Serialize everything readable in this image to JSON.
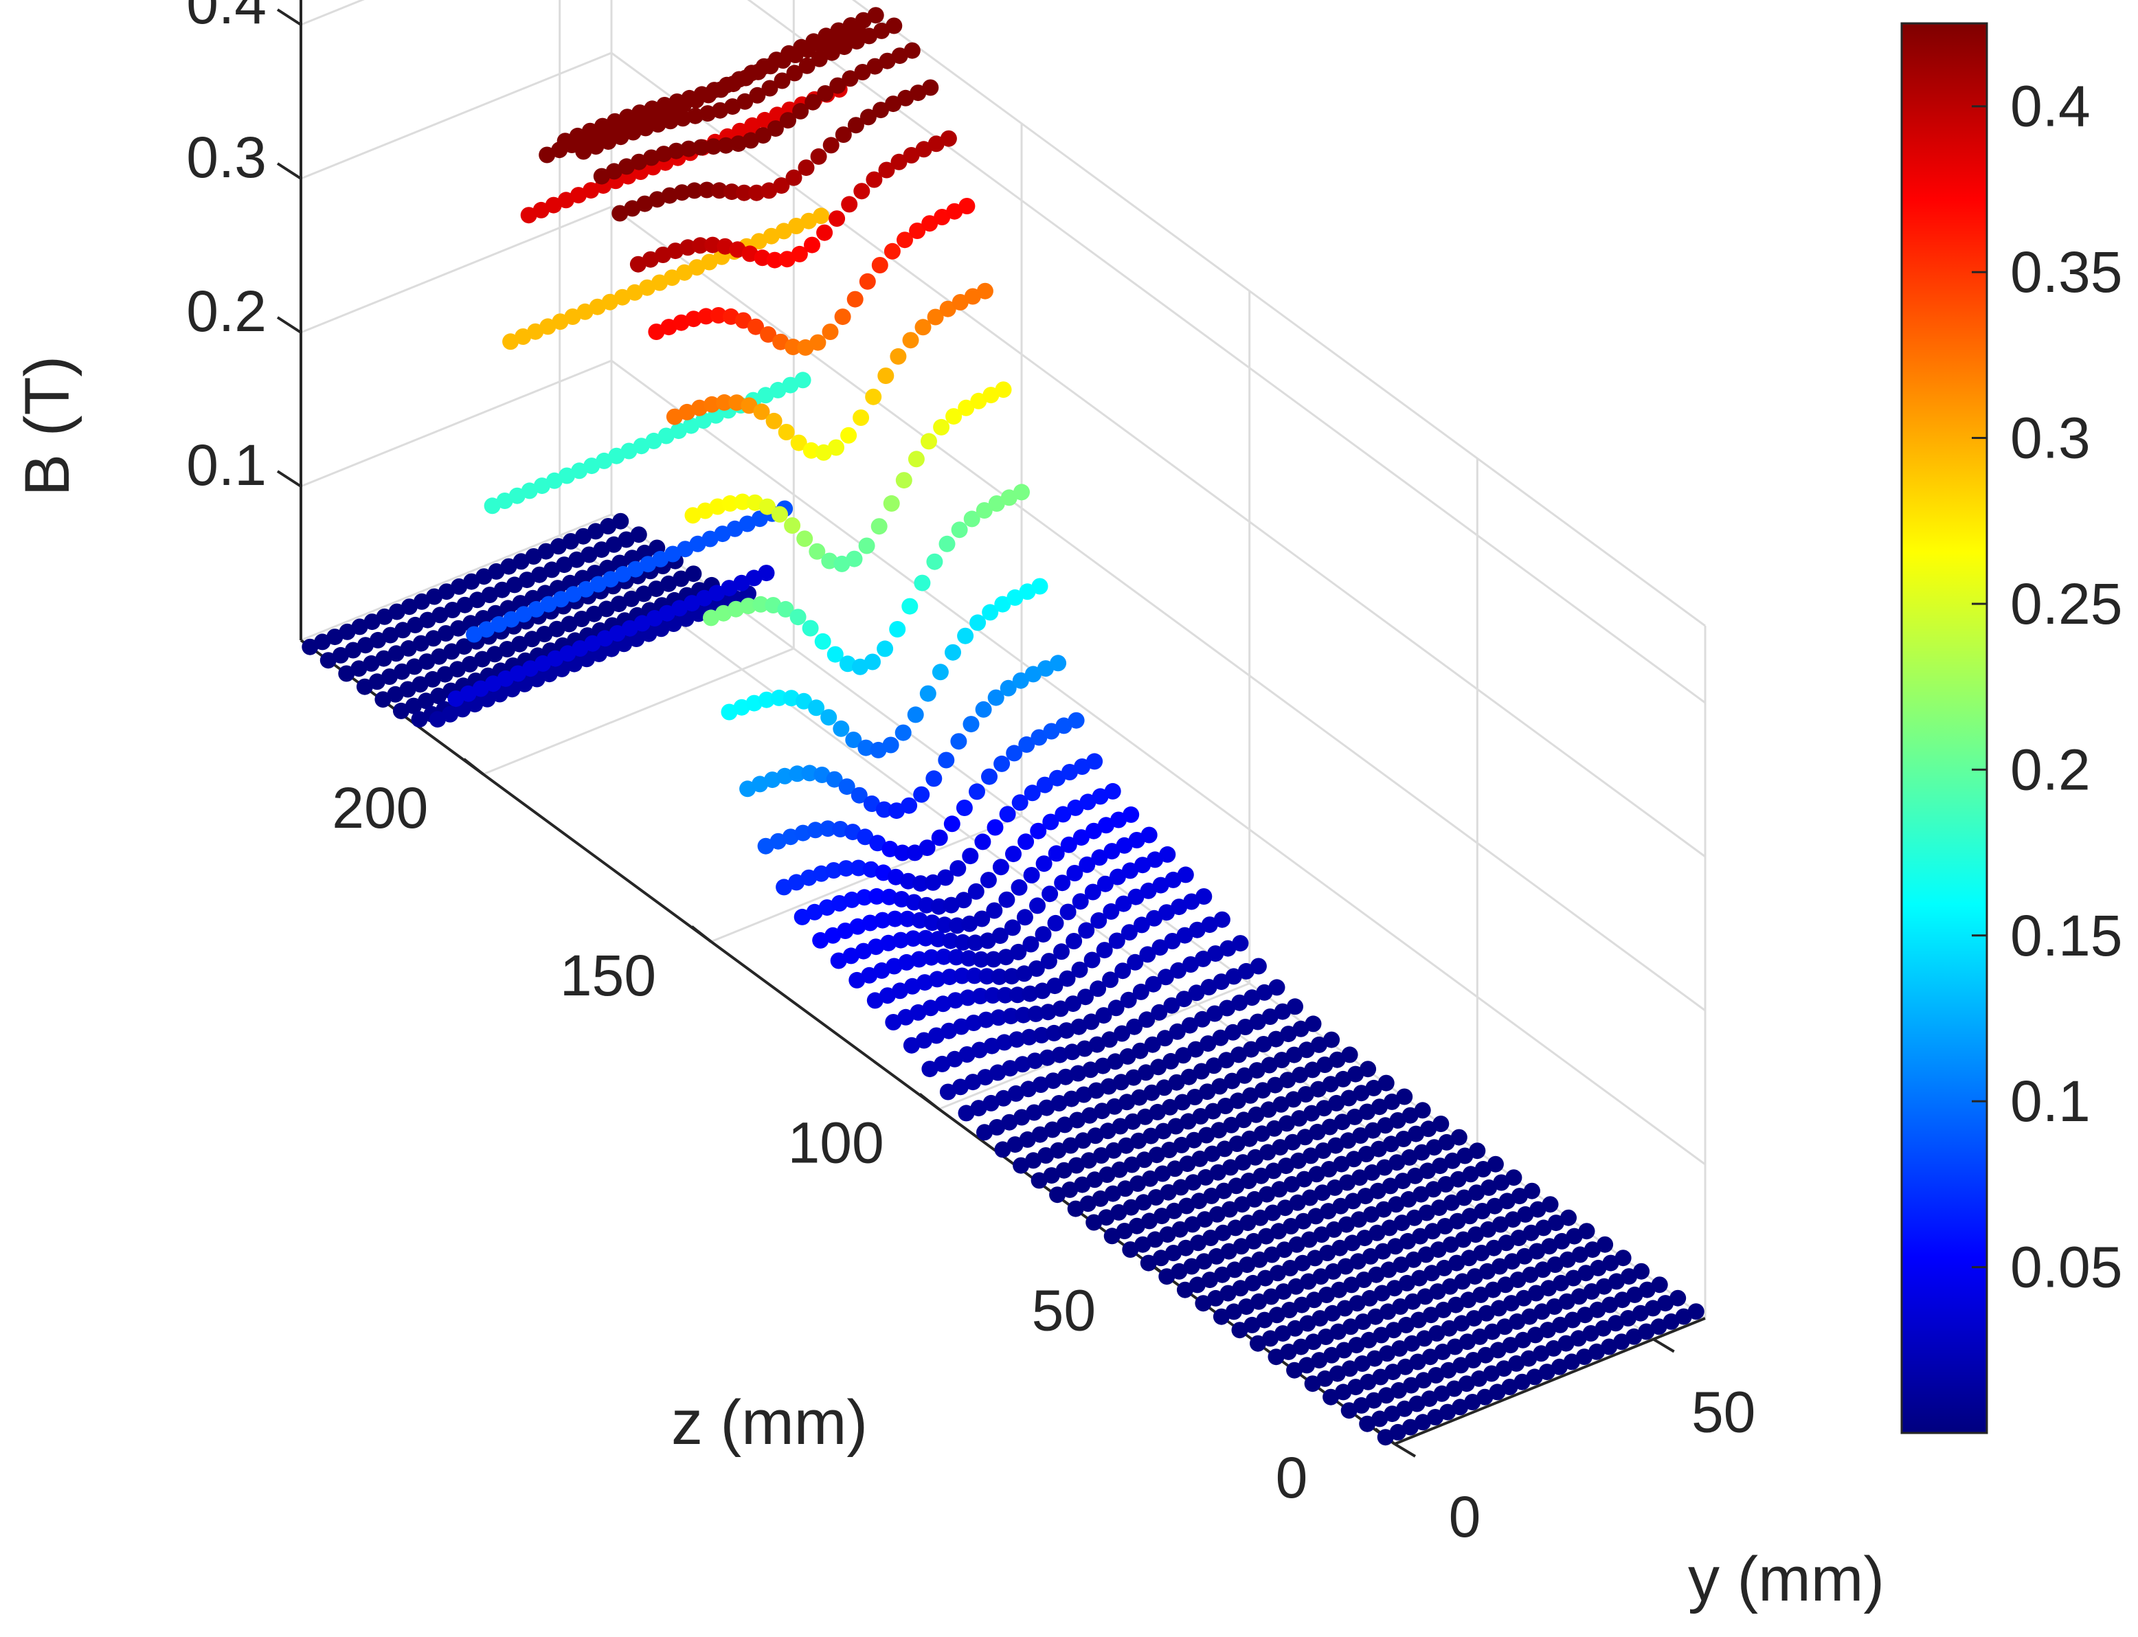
{
  "chart_data": {
    "type": "scatter",
    "title": "",
    "xlabel": "y (mm)",
    "ylabel": "z (mm)",
    "zlabel": "B (T)",
    "xlim": [
      0,
      60
    ],
    "ylim": [
      0,
      240
    ],
    "zlim": [
      0,
      0.45
    ],
    "x_ticks": [
      "0",
      "50"
    ],
    "y_ticks": [
      "0",
      "50",
      "100",
      "150",
      "200"
    ],
    "z_ticks": [
      "0.1",
      "0.2",
      "0.3",
      "0.4"
    ],
    "grid": true,
    "colorbar": {
      "colormap": "jet",
      "range": [
        0,
        0.425
      ],
      "ticks": [
        "0.05",
        "0.1",
        "0.15",
        "0.2",
        "0.25",
        "0.3",
        "0.35",
        "0.4"
      ]
    },
    "field_model": {
      "description": "B ≈ 0 for z < 95 and z > 195 mm; peak ≈ 0.42 T near z ≈ 172 mm; dip near y = 30 mm"
    }
  }
}
